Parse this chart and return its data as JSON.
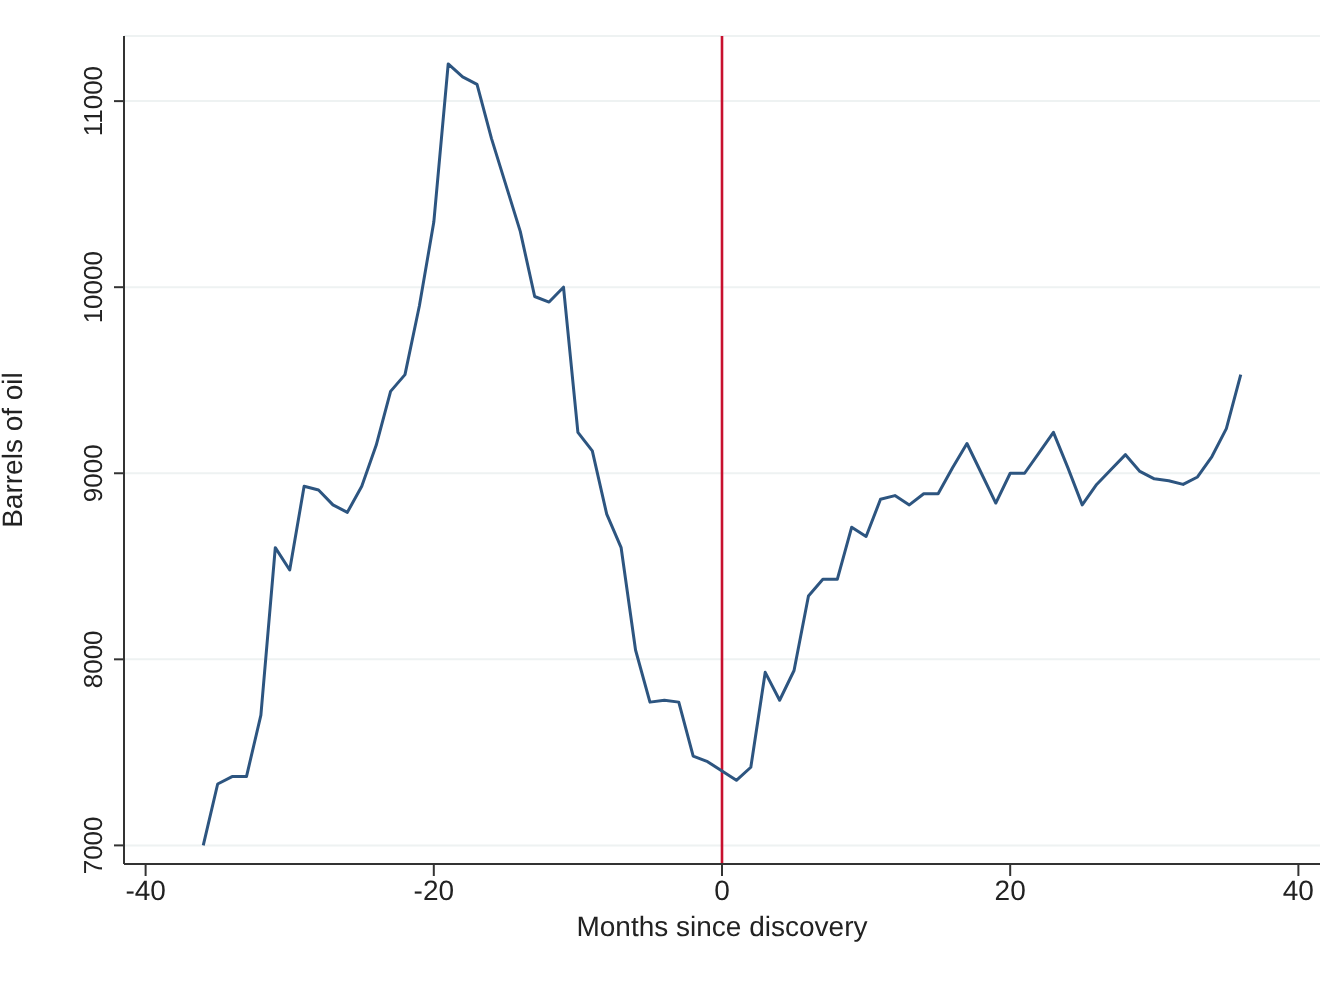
{
  "chart_data": {
    "type": "line",
    "xlabel": "Months since discovery",
    "ylabel": "Barrels of oil",
    "x": [
      -36,
      -35,
      -34,
      -33,
      -32,
      -31,
      -30,
      -29,
      -28,
      -27,
      -26,
      -25,
      -24,
      -23,
      -22,
      -21,
      -20,
      -19,
      -18,
      -17,
      -16,
      -15,
      -14,
      -13,
      -12,
      -11,
      -10,
      -9,
      -8,
      -7,
      -6,
      -5,
      -4,
      -3,
      -2,
      -1,
      0,
      1,
      2,
      3,
      4,
      5,
      6,
      7,
      8,
      9,
      10,
      11,
      12,
      13,
      14,
      15,
      16,
      17,
      18,
      19,
      20,
      21,
      22,
      23,
      24,
      25,
      26,
      27,
      28,
      29,
      30,
      31,
      32,
      33,
      34,
      35,
      36
    ],
    "series": [
      {
        "color": "#2d5580",
        "values": [
          7000,
          7330,
          7370,
          7370,
          7700,
          8600,
          8480,
          8930,
          8910,
          8830,
          8790,
          8930,
          9150,
          9440,
          9530,
          9900,
          10350,
          11200,
          11130,
          11090,
          10800,
          10550,
          10300,
          9950,
          9920,
          10000,
          9220,
          9120,
          8780,
          8600,
          8050,
          7770,
          7780,
          7770,
          7480,
          7450,
          7400,
          7350,
          7420,
          7930,
          7780,
          7940,
          8340,
          8430,
          8430,
          8710,
          8660,
          8860,
          8880,
          8830,
          8890,
          8890,
          9030,
          9160,
          9000,
          8840,
          9000,
          9000,
          9110,
          9220,
          9030,
          8830,
          8940,
          9020,
          9100,
          9010,
          8970,
          8960,
          8940,
          8980,
          9090,
          9240,
          9530
        ]
      }
    ],
    "xlim": [
      -41.5,
      41.5
    ],
    "xticks": [
      -40,
      -20,
      0,
      20,
      40
    ],
    "ylim": [
      6900,
      11350
    ],
    "yticks": [
      7000,
      8000,
      9000,
      10000,
      11000
    ],
    "grid": "y",
    "marker": "none",
    "line_style": "solid",
    "ref_lines": [
      {
        "axis": "x",
        "value": 0,
        "color": "#c8102e"
      }
    ]
  }
}
